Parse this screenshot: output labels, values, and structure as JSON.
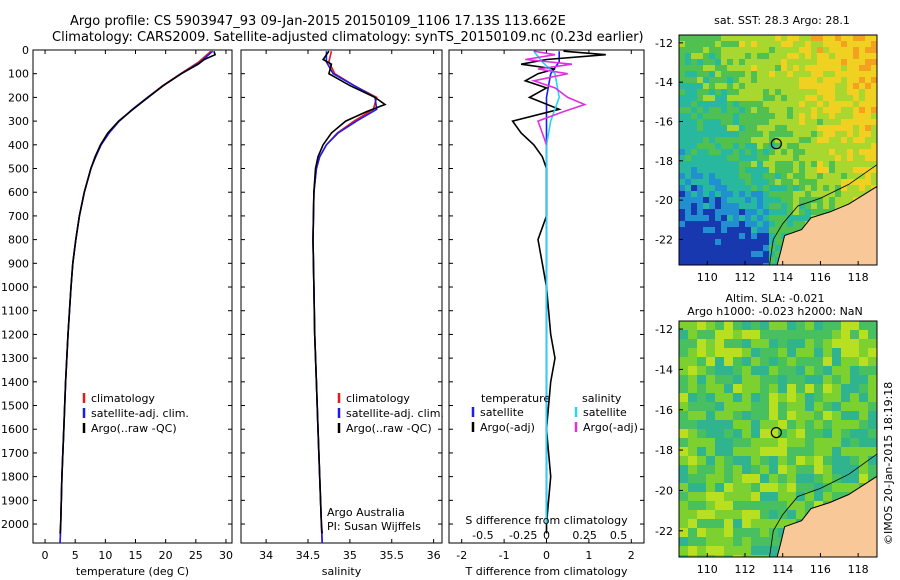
{
  "header": {
    "line1": "Argo profile: CS 5903947_93 09-Jan-2015 20150109_1106 17.13S 113.662E",
    "line2": "Climatology: CARS2009. Satellite-adjusted climatology: synTS_20150109.nc (0.23d earlier)"
  },
  "credit": "©IMOS 20-Jan-2015 18:19:18",
  "colors": {
    "climatology": "#e8191a",
    "satellite": "#1c1cf0",
    "argo": "#000000",
    "sal_satellite": "#22d8f0",
    "sal_argo": "#e030e0",
    "land": "#f8c898"
  },
  "chart_data": [
    {
      "type": "line",
      "id": "temperature",
      "xlabel": "temperature (deg C)",
      "ylabel": "",
      "xlim": [
        -2,
        31
      ],
      "ylim": [
        2080,
        0
      ],
      "xticks": [
        0,
        5,
        10,
        15,
        20,
        25,
        30
      ],
      "yticks": [
        0,
        100,
        200,
        300,
        400,
        500,
        600,
        700,
        800,
        900,
        1000,
        1100,
        1200,
        1300,
        1400,
        1500,
        1600,
        1700,
        1800,
        1900,
        2000
      ],
      "legend": [
        "climatology",
        "satellite-adj. clim.",
        "Argo(..raw -QC)"
      ],
      "series": [
        {
          "name": "climatology",
          "depth": [
            5,
            50,
            100,
            150,
            200,
            250,
            300,
            350,
            400,
            450,
            500,
            600,
            700,
            800,
            900,
            1000,
            1200,
            1400,
            1600,
            1800,
            2000,
            2080
          ],
          "values": [
            27.5,
            25.5,
            22.5,
            19.5,
            17.0,
            14.5,
            12.3,
            10.6,
            9.3,
            8.4,
            7.6,
            6.5,
            5.7,
            5.1,
            4.6,
            4.3,
            3.8,
            3.4,
            3.1,
            2.8,
            2.6,
            2.5
          ]
        },
        {
          "name": "satellite-adj. clim.",
          "depth": [
            5,
            50,
            100,
            150,
            200,
            250,
            300,
            350,
            400,
            450,
            500,
            600,
            700,
            800,
            900,
            1000,
            1200,
            1400,
            1600,
            1800,
            2000,
            2080
          ],
          "values": [
            27.8,
            25.8,
            22.6,
            19.6,
            17.0,
            14.5,
            12.3,
            10.6,
            9.3,
            8.4,
            7.6,
            6.5,
            5.7,
            5.1,
            4.6,
            4.3,
            3.8,
            3.4,
            3.1,
            2.8,
            2.6,
            2.5
          ]
        },
        {
          "name": "Argo(..raw -QC)",
          "depth": [
            5,
            20,
            40,
            60,
            100,
            150,
            200,
            250,
            300,
            350,
            400,
            450,
            500,
            600,
            700,
            800,
            900,
            1000,
            1200,
            1400,
            1600,
            1800,
            2000,
            2040
          ],
          "values": [
            28.0,
            28.2,
            26.4,
            25.4,
            22.6,
            19.6,
            17.1,
            14.6,
            12.2,
            10.4,
            9.2,
            8.3,
            7.6,
            6.5,
            5.7,
            5.1,
            4.6,
            4.3,
            3.8,
            3.4,
            3.1,
            2.8,
            2.6,
            2.5
          ]
        }
      ]
    },
    {
      "type": "line",
      "id": "salinity",
      "xlabel": "salinity",
      "xlim": [
        33.7,
        36.1
      ],
      "ylim": [
        2080,
        0
      ],
      "xticks": [
        34,
        34.5,
        35,
        35.5,
        36
      ],
      "legend": [
        "climatology",
        "satellite-adj. clim.",
        "Argo(..raw -QC)"
      ],
      "annotation": [
        "Argo Australia",
        "PI: Susan Wijffels"
      ],
      "series": [
        {
          "name": "climatology",
          "depth": [
            5,
            50,
            100,
            150,
            200,
            250,
            300,
            350,
            400,
            450,
            500,
            600,
            800,
            1000,
            1200,
            1400,
            1600,
            1800,
            2000,
            2080
          ],
          "values": [
            34.78,
            34.75,
            34.82,
            35.05,
            35.32,
            35.28,
            35.05,
            34.85,
            34.72,
            34.64,
            34.6,
            34.57,
            34.56,
            34.57,
            34.58,
            34.6,
            34.62,
            34.64,
            34.66,
            34.67
          ]
        },
        {
          "name": "satellite-adj. clim.",
          "depth": [
            5,
            50,
            100,
            150,
            200,
            250,
            300,
            350,
            400,
            450,
            500,
            600,
            800,
            1000,
            1200,
            1400,
            1600,
            1800,
            2000,
            2080
          ],
          "values": [
            34.72,
            34.72,
            34.8,
            35.05,
            35.3,
            35.32,
            35.08,
            34.86,
            34.72,
            34.64,
            34.6,
            34.57,
            34.56,
            34.57,
            34.58,
            34.6,
            34.62,
            34.64,
            34.66,
            34.67
          ]
        },
        {
          "name": "Argo(..raw -QC)",
          "depth": [
            5,
            40,
            60,
            100,
            150,
            200,
            230,
            260,
            300,
            350,
            400,
            450,
            500,
            600,
            800,
            1000,
            1200,
            1400,
            1600,
            1800,
            2000,
            2040
          ],
          "values": [
            34.75,
            34.68,
            34.78,
            34.75,
            35.0,
            35.3,
            35.42,
            35.2,
            34.95,
            34.78,
            34.68,
            34.62,
            34.59,
            34.57,
            34.56,
            34.57,
            34.58,
            34.6,
            34.62,
            34.64,
            34.66,
            34.67
          ]
        }
      ]
    },
    {
      "type": "line",
      "id": "difference",
      "xlabel": "T difference from climatology",
      "xlabel_top": "S difference from climatology",
      "xlim": [
        -2.3,
        2.3
      ],
      "ylim": [
        2080,
        0
      ],
      "xticks": [
        -2,
        -1,
        0,
        1,
        2
      ],
      "sticks_label": [
        "-0.5",
        "-0.25",
        "0",
        "0.25",
        "0.5"
      ],
      "legend": {
        "temperature": [
          "satellite",
          "Argo(-adj)"
        ],
        "salinity": [
          "satellite",
          "Argo(-adj)"
        ]
      },
      "series": [
        {
          "name": "temperature satellite",
          "depth": [
            5,
            50,
            100,
            200,
            300,
            400,
            600,
            1000,
            2000
          ],
          "values": [
            0.3,
            0.3,
            0.1,
            0.0,
            0.0,
            0.0,
            0.0,
            0.0,
            0.0
          ]
        },
        {
          "name": "temperature Argo(-adj)",
          "depth": [
            5,
            20,
            40,
            60,
            80,
            100,
            130,
            160,
            200,
            250,
            300,
            350,
            400,
            450,
            500,
            700,
            800,
            900,
            1000,
            1200,
            1300,
            1400,
            1600,
            1800,
            2000,
            2040
          ],
          "values": [
            0.4,
            1.4,
            0.0,
            -0.6,
            0.2,
            -0.2,
            -0.5,
            0.0,
            -0.4,
            0.3,
            -0.8,
            -0.6,
            -0.3,
            -0.1,
            0.0,
            0.0,
            -0.2,
            -0.1,
            0.0,
            0.1,
            0.2,
            0.1,
            0.0,
            0.1,
            0.0,
            0.0
          ]
        },
        {
          "name": "salinity satellite",
          "depth": [
            5,
            50,
            100,
            200,
            300,
            400,
            600,
            1000,
            2000
          ],
          "values": [
            -0.3,
            -0.1,
            0.2,
            0.3,
            0.1,
            0.0,
            0.0,
            0.0,
            0.0
          ]
        },
        {
          "name": "salinity Argo(-adj)",
          "depth": [
            5,
            20,
            40,
            60,
            80,
            100,
            130,
            160,
            200,
            230,
            260,
            300,
            350,
            400
          ],
          "values": [
            -0.3,
            0.2,
            -0.5,
            0.6,
            -0.2,
            0.5,
            -0.3,
            0.2,
            0.5,
            0.9,
            0.4,
            -0.2,
            -0.1,
            0.0
          ]
        }
      ]
    },
    {
      "type": "heatmap",
      "id": "sst_map",
      "title": "sat. SST: 28.3 Argo: 28.1",
      "xlim": [
        108.5,
        119
      ],
      "ylim": [
        -23.3,
        -11.6
      ],
      "xticks": [
        110,
        112,
        114,
        116,
        118
      ],
      "yticks": [
        -12,
        -14,
        -16,
        -18,
        -20,
        -22
      ],
      "argo_position": [
        113.662,
        -17.13
      ]
    },
    {
      "type": "heatmap",
      "id": "sla_map",
      "title": [
        "Altim. SLA: -0.021",
        "Argo h1000: -0.023 h2000: NaN"
      ],
      "xlim": [
        108.5,
        119
      ],
      "ylim": [
        -23.3,
        -11.6
      ],
      "xticks": [
        110,
        112,
        114,
        116,
        118
      ],
      "yticks": [
        -12,
        -14,
        -16,
        -18,
        -20,
        -22
      ],
      "argo_position": [
        113.662,
        -17.13
      ]
    }
  ]
}
